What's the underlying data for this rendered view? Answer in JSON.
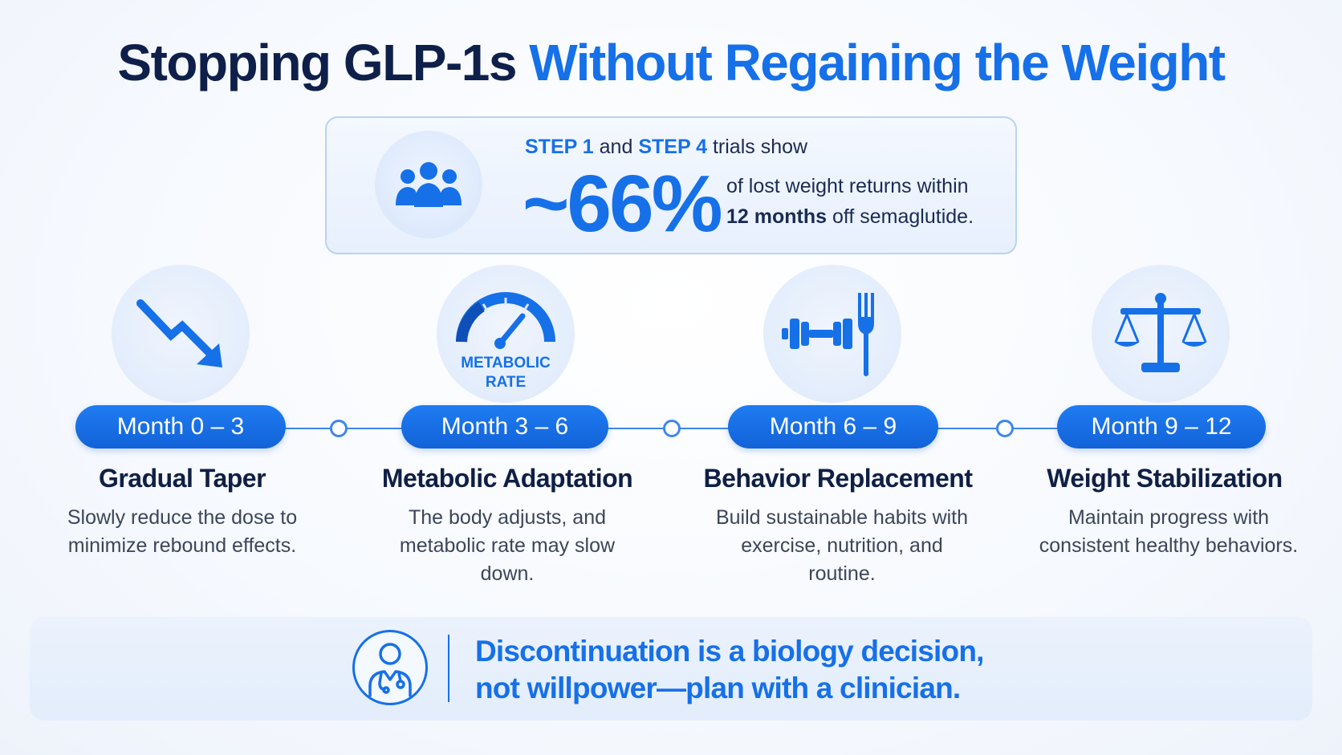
{
  "title": {
    "part1": "Stopping GLP-1s",
    "part2": "Without Regaining the Weight"
  },
  "stat": {
    "icon": "people-group-icon",
    "trial1": "STEP 1",
    "and_text": "and",
    "trial2": "STEP 4",
    "trials_suffix": "trials show",
    "value": "~66%",
    "line1": "of lost weight returns within",
    "line2_bold": "12 months",
    "line2_rest": "off semaglutide."
  },
  "steps": [
    {
      "icon": "trending-down-arrow-icon",
      "month": "Month 0 – 3",
      "title": "Gradual Taper",
      "desc": "Slowly reduce the dose to minimize rebound effects."
    },
    {
      "icon": "gauge-icon",
      "icon_label1": "METABOLIC",
      "icon_label2": "RATE",
      "month": "Month 3 – 6",
      "title": "Metabolic Adaptation",
      "desc": "The body adjusts, and metabolic rate may slow down."
    },
    {
      "icon": "dumbbell-fork-icon",
      "month": "Month 6 – 9",
      "title": "Behavior Replacement",
      "desc": "Build sustainable habits with exercise, nutrition, and routine."
    },
    {
      "icon": "balance-scale-icon",
      "month": "Month 9 – 12",
      "title": "Weight Stabilization",
      "desc": "Maintain progress with consistent healthy behaviors."
    }
  ],
  "banner": {
    "icon": "doctor-stethoscope-icon",
    "line1": "Discontinuation is a biology decision,",
    "line2": "not willpower—plan with a clinician."
  },
  "colors": {
    "accent": "#1670e8",
    "dark": "#0e1f4a",
    "pill": "#1a6fe6"
  }
}
